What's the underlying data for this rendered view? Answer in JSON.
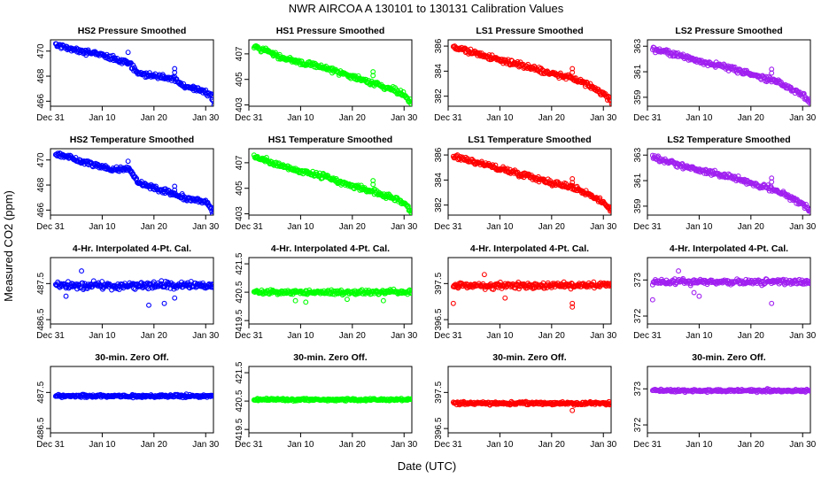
{
  "figure": {
    "title": "NWR   AIRCOA A   130101 to 130131   Calibration Values",
    "ylabel": "Measured CO2 (ppm)",
    "xlabel": "Date (UTC)"
  },
  "chart_data": [
    {
      "type": "scatter",
      "title": "HS2 Pressure Smoothed",
      "color": "#0000ff",
      "xlim": [
        0,
        31.5
      ],
      "ylim": [
        465.6,
        470.9
      ],
      "yticks": [
        466,
        468,
        470
      ],
      "xticks": [
        0,
        10,
        20,
        30
      ],
      "xtick_labels": [
        "Dec 31",
        "Jan 10",
        "Jan 20",
        "Jan 30"
      ],
      "trend": [
        [
          1,
          470.5
        ],
        [
          5,
          470.1
        ],
        [
          10,
          469.7
        ],
        [
          12,
          469.4
        ],
        [
          15,
          469.1
        ],
        [
          17,
          468.2
        ],
        [
          22,
          467.9
        ],
        [
          24,
          467.8
        ],
        [
          26,
          467.1
        ],
        [
          29,
          466.9
        ],
        [
          31,
          466.5
        ],
        [
          31.6,
          465.8
        ]
      ],
      "outliers": [
        [
          15,
          469.9
        ],
        [
          24,
          468.6
        ],
        [
          24,
          468.3
        ]
      ],
      "noise": 0.2
    },
    {
      "type": "scatter",
      "title": "HS1 Pressure Smoothed",
      "color": "#00ff00",
      "xlim": [
        0,
        31.5
      ],
      "ylim": [
        402.9,
        408.1
      ],
      "yticks": [
        403,
        405,
        407
      ],
      "xticks": [
        0,
        10,
        20,
        30
      ],
      "xtick_labels": [
        "Dec 31",
        "Jan 10",
        "Jan 20",
        "Jan 30"
      ],
      "trend": [
        [
          1,
          407.6
        ],
        [
          5,
          406.9
        ],
        [
          10,
          406.3
        ],
        [
          15,
          405.9
        ],
        [
          20,
          405.2
        ],
        [
          25,
          404.6
        ],
        [
          28,
          404.2
        ],
        [
          30,
          403.8
        ],
        [
          31.6,
          403.2
        ]
      ],
      "outliers": [
        [
          24,
          405.6
        ],
        [
          24,
          405.3
        ]
      ],
      "noise": 0.2
    },
    {
      "type": "scatter",
      "title": "LS1 Pressure Smoothed",
      "color": "#ff0000",
      "xlim": [
        0,
        31.5
      ],
      "ylim": [
        381.2,
        386.5
      ],
      "yticks": [
        382,
        384,
        386
      ],
      "xticks": [
        0,
        10,
        20,
        30
      ],
      "xtick_labels": [
        "Dec 31",
        "Jan 10",
        "Jan 20",
        "Jan 30"
      ],
      "trend": [
        [
          1,
          385.9
        ],
        [
          5,
          385.5
        ],
        [
          10,
          384.9
        ],
        [
          15,
          384.4
        ],
        [
          20,
          383.8
        ],
        [
          25,
          383.3
        ],
        [
          28,
          382.7
        ],
        [
          30,
          382.2
        ],
        [
          31.6,
          381.6
        ]
      ],
      "outliers": [
        [
          24,
          384.2
        ],
        [
          24,
          383.9
        ]
      ],
      "noise": 0.2
    },
    {
      "type": "scatter",
      "title": "LS2 Pressure Smoothed",
      "color": "#a020f0",
      "xlim": [
        0,
        31.5
      ],
      "ylim": [
        358.3,
        363.5
      ],
      "yticks": [
        359,
        361,
        363
      ],
      "xticks": [
        0,
        10,
        20,
        30
      ],
      "xtick_labels": [
        "Dec 31",
        "Jan 10",
        "Jan 20",
        "Jan 30"
      ],
      "trend": [
        [
          1,
          362.8
        ],
        [
          5,
          362.4
        ],
        [
          10,
          361.8
        ],
        [
          15,
          361.4
        ],
        [
          20,
          360.8
        ],
        [
          25,
          360.2
        ],
        [
          28,
          359.6
        ],
        [
          30,
          359.2
        ],
        [
          31.6,
          358.6
        ]
      ],
      "outliers": [
        [
          24,
          361.2
        ],
        [
          24,
          360.9
        ]
      ],
      "noise": 0.2
    },
    {
      "type": "scatter",
      "title": "HS2 Temperature Smoothed",
      "color": "#0000ff",
      "xlim": [
        0,
        31.5
      ],
      "ylim": [
        465.6,
        470.9
      ],
      "yticks": [
        466,
        468,
        470
      ],
      "xticks": [
        0,
        10,
        20,
        30
      ],
      "xtick_labels": [
        "Dec 31",
        "Jan 10",
        "Jan 20",
        "Jan 30"
      ],
      "trend": [
        [
          1,
          470.5
        ],
        [
          5,
          470.0
        ],
        [
          9,
          469.6
        ],
        [
          12,
          469.2
        ],
        [
          15,
          469.4
        ],
        [
          17,
          468.2
        ],
        [
          22,
          467.5
        ],
        [
          24,
          467.3
        ],
        [
          26,
          466.9
        ],
        [
          30,
          466.7
        ],
        [
          31.6,
          465.8
        ]
      ],
      "outliers": [
        [
          15,
          469.9
        ],
        [
          24,
          467.9
        ],
        [
          24,
          467.6
        ]
      ],
      "noise": 0.2
    },
    {
      "type": "scatter",
      "title": "HS1 Temperature Smoothed",
      "color": "#00ff00",
      "xlim": [
        0,
        31.5
      ],
      "ylim": [
        402.9,
        408.1
      ],
      "yticks": [
        403,
        405,
        407
      ],
      "xticks": [
        0,
        10,
        20,
        30
      ],
      "xtick_labels": [
        "Dec 31",
        "Jan 10",
        "Jan 20",
        "Jan 30"
      ],
      "trend": [
        [
          1,
          407.6
        ],
        [
          5,
          406.9
        ],
        [
          10,
          406.3
        ],
        [
          15,
          405.9
        ],
        [
          20,
          405.2
        ],
        [
          25,
          404.6
        ],
        [
          28,
          404.2
        ],
        [
          30,
          403.8
        ],
        [
          31.6,
          403.2
        ]
      ],
      "outliers": [
        [
          24,
          405.6
        ],
        [
          24,
          405.3
        ]
      ],
      "noise": 0.2
    },
    {
      "type": "scatter",
      "title": "LS1 Temperature Smoothed",
      "color": "#ff0000",
      "xlim": [
        0,
        31.5
      ],
      "ylim": [
        381.2,
        386.5
      ],
      "yticks": [
        382,
        384,
        386
      ],
      "xticks": [
        0,
        10,
        20,
        30
      ],
      "xtick_labels": [
        "Dec 31",
        "Jan 10",
        "Jan 20",
        "Jan 30"
      ],
      "trend": [
        [
          1,
          385.9
        ],
        [
          5,
          385.5
        ],
        [
          10,
          384.9
        ],
        [
          15,
          384.4
        ],
        [
          20,
          383.8
        ],
        [
          25,
          383.3
        ],
        [
          28,
          382.7
        ],
        [
          30,
          382.2
        ],
        [
          31.6,
          381.6
        ]
      ],
      "outliers": [
        [
          24,
          384.1
        ],
        [
          24,
          383.8
        ]
      ],
      "noise": 0.2
    },
    {
      "type": "scatter",
      "title": "LS2 Temperature Smoothed",
      "color": "#a020f0",
      "xlim": [
        0,
        31.5
      ],
      "ylim": [
        358.3,
        363.5
      ],
      "yticks": [
        359,
        361,
        363
      ],
      "xticks": [
        0,
        10,
        20,
        30
      ],
      "xtick_labels": [
        "Dec 31",
        "Jan 10",
        "Jan 20",
        "Jan 30"
      ],
      "trend": [
        [
          1,
          362.8
        ],
        [
          5,
          362.4
        ],
        [
          10,
          361.8
        ],
        [
          15,
          361.4
        ],
        [
          20,
          360.8
        ],
        [
          25,
          360.2
        ],
        [
          28,
          359.6
        ],
        [
          30,
          359.2
        ],
        [
          31.6,
          358.6
        ]
      ],
      "outliers": [
        [
          24,
          361.2
        ],
        [
          24,
          360.9
        ]
      ],
      "noise": 0.2
    },
    {
      "type": "scatter",
      "title": "4-Hr. Interpolated 4-Pt. Cal.",
      "color": "#0000ff",
      "xlim": [
        0,
        31.5
      ],
      "ylim": [
        486.38,
        488.22
      ],
      "yticks": [
        486.5,
        487.5
      ],
      "xticks": [
        0,
        10,
        20,
        30
      ],
      "xtick_labels": [
        "Dec 31",
        "Jan 10",
        "Jan 20",
        "Jan 30"
      ],
      "trend": [
        [
          1,
          487.45
        ],
        [
          31.6,
          487.45
        ]
      ],
      "outliers": [
        [
          6,
          487.85
        ],
        [
          3,
          487.15
        ],
        [
          22,
          486.95
        ],
        [
          19,
          486.9
        ],
        [
          24,
          487.1
        ]
      ],
      "noise": 0.1
    },
    {
      "type": "scatter",
      "title": "4-Hr. Interpolated 4-Pt. Cal.",
      "color": "#00ff00",
      "xlim": [
        0,
        31.5
      ],
      "ylim": [
        419.38,
        421.72
      ],
      "yticks": [
        419.5,
        420.5,
        421.5
      ],
      "xticks": [
        0,
        10,
        20,
        30
      ],
      "xtick_labels": [
        "Dec 31",
        "Jan 10",
        "Jan 20",
        "Jan 30"
      ],
      "trend": [
        [
          1,
          420.5
        ],
        [
          31.6,
          420.5
        ]
      ],
      "outliers": [
        [
          9,
          420.2
        ],
        [
          11,
          420.15
        ],
        [
          19,
          420.25
        ],
        [
          26,
          420.2
        ]
      ],
      "noise": 0.08
    },
    {
      "type": "scatter",
      "title": "4-Hr. Interpolated 4-Pt. Cal.",
      "color": "#ff0000",
      "xlim": [
        0,
        31.5
      ],
      "ylim": [
        396.38,
        398.22
      ],
      "yticks": [
        396.5,
        397.5
      ],
      "xticks": [
        0,
        10,
        20,
        30
      ],
      "xtick_labels": [
        "Dec 31",
        "Jan 10",
        "Jan 20",
        "Jan 30"
      ],
      "trend": [
        [
          1,
          397.45
        ],
        [
          31.6,
          397.45
        ]
      ],
      "outliers": [
        [
          1,
          396.95
        ],
        [
          7,
          397.75
        ],
        [
          11,
          397.1
        ],
        [
          24,
          396.85
        ],
        [
          24,
          396.95
        ]
      ],
      "noise": 0.08
    },
    {
      "type": "scatter",
      "title": "4-Hr. Interpolated 4-Pt. Cal.",
      "color": "#a020f0",
      "xlim": [
        0,
        31.5
      ],
      "ylim": [
        371.78,
        373.62
      ],
      "yticks": [
        372.0,
        373.0
      ],
      "xticks": [
        0,
        10,
        20,
        30
      ],
      "xtick_labels": [
        "Dec 31",
        "Jan 10",
        "Jan 20",
        "Jan 30"
      ],
      "trend": [
        [
          1,
          372.95
        ],
        [
          31.6,
          372.95
        ]
      ],
      "outliers": [
        [
          1,
          372.45
        ],
        [
          6,
          373.25
        ],
        [
          9,
          372.65
        ],
        [
          10,
          372.55
        ],
        [
          24,
          372.35
        ]
      ],
      "noise": 0.08
    },
    {
      "type": "scatter",
      "title": "30-min. Zero Off.",
      "color": "#0000ff",
      "xlim": [
        0,
        31.5
      ],
      "ylim": [
        486.38,
        488.22
      ],
      "yticks": [
        486.5,
        487.5
      ],
      "xticks": [
        0,
        10,
        20,
        30
      ],
      "xtick_labels": [
        "Dec 31",
        "Jan 10",
        "Jan 20",
        "Jan 30"
      ],
      "trend": [
        [
          1,
          487.4
        ],
        [
          31.6,
          487.4
        ]
      ],
      "outliers": [],
      "noise": 0.04
    },
    {
      "type": "scatter",
      "title": "30-min. Zero Off.",
      "color": "#00ff00",
      "xlim": [
        0,
        31.5
      ],
      "ylim": [
        419.38,
        421.72
      ],
      "yticks": [
        419.5,
        420.5,
        421.5
      ],
      "xticks": [
        0,
        10,
        20,
        30
      ],
      "xtick_labels": [
        "Dec 31",
        "Jan 10",
        "Jan 20",
        "Jan 30"
      ],
      "trend": [
        [
          1,
          420.55
        ],
        [
          31.6,
          420.55
        ]
      ],
      "outliers": [],
      "noise": 0.04
    },
    {
      "type": "scatter",
      "title": "30-min. Zero Off.",
      "color": "#ff0000",
      "xlim": [
        0,
        31.5
      ],
      "ylim": [
        396.38,
        398.22
      ],
      "yticks": [
        396.5,
        397.5
      ],
      "xticks": [
        0,
        10,
        20,
        30
      ],
      "xtick_labels": [
        "Dec 31",
        "Jan 10",
        "Jan 20",
        "Jan 30"
      ],
      "trend": [
        [
          1,
          397.2
        ],
        [
          31.6,
          397.2
        ]
      ],
      "outliers": [
        [
          24,
          397.0
        ]
      ],
      "noise": 0.04
    },
    {
      "type": "scatter",
      "title": "30-min. Zero Off.",
      "color": "#a020f0",
      "xlim": [
        0,
        31.5
      ],
      "ylim": [
        371.78,
        373.62
      ],
      "yticks": [
        372.0,
        373.0
      ],
      "xticks": [
        0,
        10,
        20,
        30
      ],
      "xtick_labels": [
        "Dec 31",
        "Jan 10",
        "Jan 20",
        "Jan 30"
      ],
      "trend": [
        [
          1,
          372.95
        ],
        [
          31.6,
          372.95
        ]
      ],
      "outliers": [],
      "noise": 0.04
    }
  ]
}
